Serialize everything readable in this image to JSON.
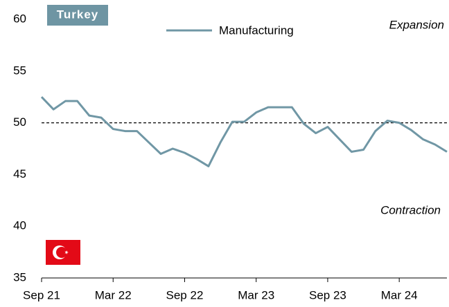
{
  "chart_data": {
    "type": "line",
    "title": "Turkey",
    "annotations": [
      "Expansion",
      "Contraction"
    ],
    "categories": [
      "Sep 21",
      null,
      null,
      null,
      null,
      null,
      "Mar 22",
      null,
      null,
      null,
      null,
      null,
      "Sep 22",
      null,
      null,
      null,
      null,
      null,
      "Mar 23",
      null,
      null,
      null,
      null,
      null,
      "Sep 23",
      null,
      null,
      null,
      null,
      null,
      "Mar 24",
      null,
      null,
      null,
      null
    ],
    "series": [
      {
        "name": "Manufacturing",
        "color": "#7097a5",
        "values": [
          52.5,
          51.3,
          52.1,
          52.1,
          50.7,
          50.5,
          49.4,
          49.2,
          49.2,
          48.1,
          47.0,
          47.5,
          47.1,
          46.5,
          45.8,
          48.1,
          50.1,
          50.1,
          51.0,
          51.5,
          51.5,
          51.5,
          49.9,
          49.0,
          49.6,
          48.4,
          47.2,
          47.4,
          49.2,
          50.2,
          50.0,
          49.3,
          48.4,
          47.9,
          47.2
        ]
      }
    ],
    "reference_line": 50,
    "ylim": [
      35,
      60
    ],
    "yticks": [
      35,
      40,
      45,
      50,
      55,
      60
    ]
  }
}
